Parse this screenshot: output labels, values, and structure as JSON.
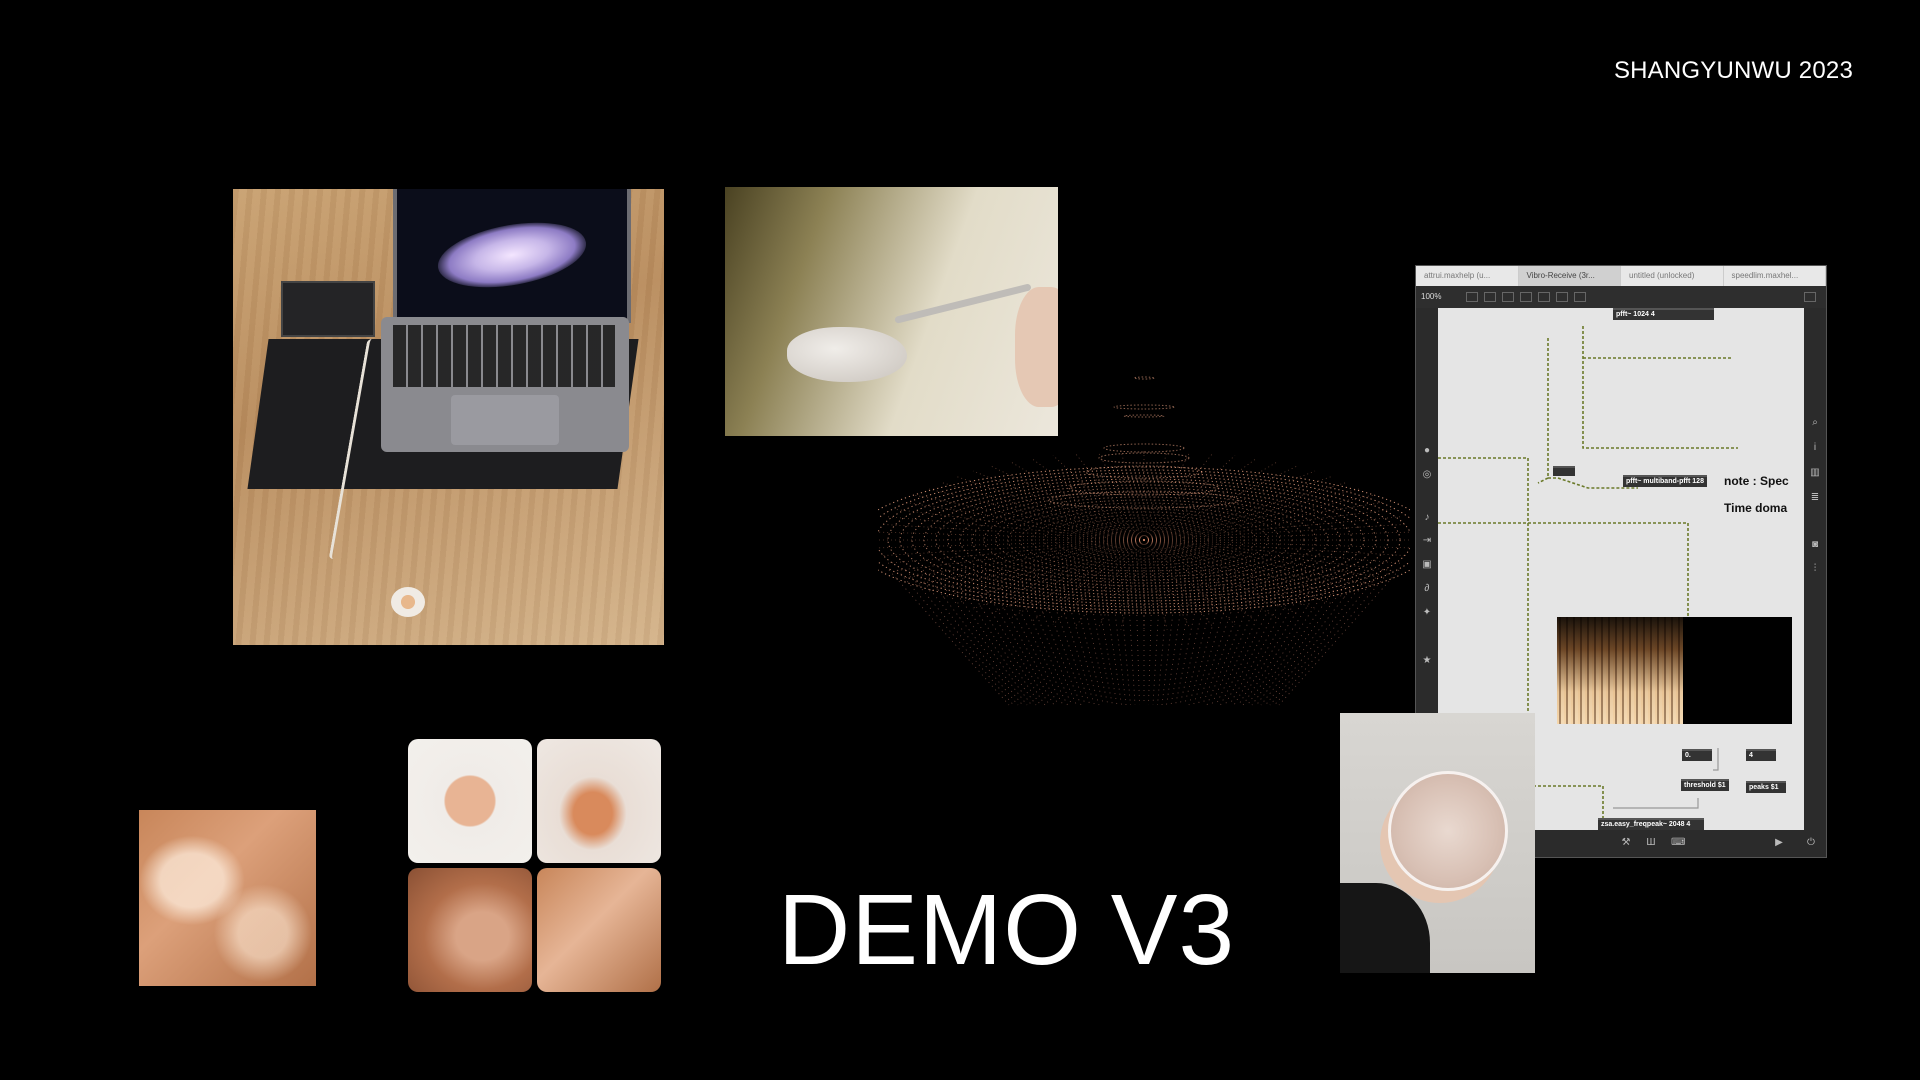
{
  "credit": "SHANGYUNWU 2023",
  "title": "DEMO V3",
  "max_window": {
    "tabs": [
      "attrui.maxhelp (u...",
      "Vibro-Receive (3r...",
      "untitled (unlocked)",
      "speedlim.maxhel..."
    ],
    "zoom": "100%",
    "objects": {
      "pfft_top": "pfft~ 1024 4",
      "pfft_multiband": "pfft~ multiband-pfft 128",
      "zero": "0.",
      "four": "4",
      "threshold": "threshold $1",
      "peaks": "peaks $1",
      "zsa": "zsa.easy_freqpeak~ 2048 4"
    },
    "comments": {
      "note": "note : Spec",
      "time": "Time doma"
    }
  }
}
